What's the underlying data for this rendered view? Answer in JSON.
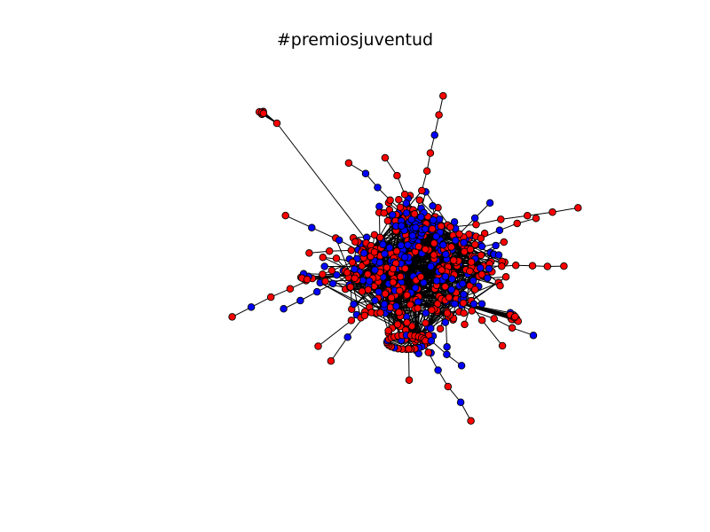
{
  "figure": {
    "title": "#premiosjuventud"
  },
  "colors": {
    "background": "#ffffff",
    "edge": "#000000",
    "node_outline": "#000000",
    "node_red": "#ff0000",
    "node_blue": "#0000ff"
  },
  "graph": {
    "type": "network",
    "node_color_groups": [
      "red",
      "blue"
    ],
    "edges_drawn": true
  }
}
